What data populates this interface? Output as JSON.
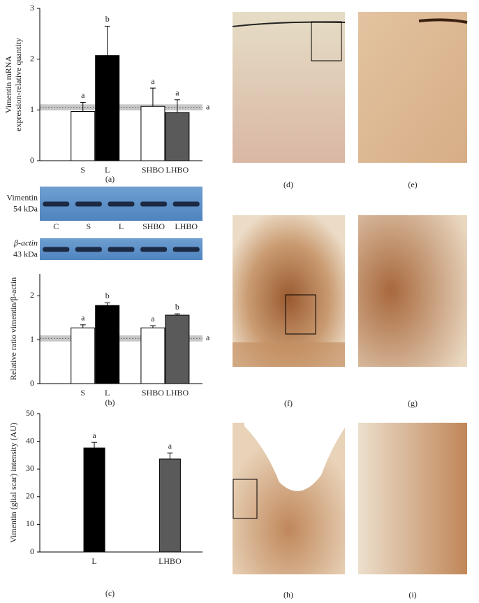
{
  "chart_data": [
    {
      "type": "bar",
      "ylabel": [
        "Vimentin mRNA",
        "expression-relative quantity"
      ],
      "caption": "(a)",
      "categories": [
        "S",
        "L",
        "SHBO",
        "LHBO"
      ],
      "values": [
        0.97,
        2.07,
        1.07,
        0.95
      ],
      "errors": [
        0.18,
        0.58,
        0.36,
        0.25
      ],
      "colors": [
        "#ffffff",
        "#000000",
        "#ffffff",
        "#5a5a5a"
      ],
      "letters": [
        "a",
        "b",
        "a",
        "a"
      ],
      "reference": 1.05,
      "reference_band": [
        0.99,
        1.11
      ],
      "reference_label": "a",
      "ylim": [
        0,
        3
      ],
      "yticks": [
        0,
        1,
        2,
        3
      ]
    },
    {
      "type": "bar",
      "ylabel": [
        "Relative ratio vimentin/β-actin"
      ],
      "caption": "(b)",
      "categories": [
        "S",
        "L",
        "SHBO",
        "LHBO"
      ],
      "values": [
        1.27,
        1.78,
        1.27,
        1.56
      ],
      "errors": [
        0.07,
        0.06,
        0.05,
        0.03
      ],
      "colors": [
        "#ffffff",
        "#000000",
        "#ffffff",
        "#5a5a5a"
      ],
      "letters": [
        "a",
        "b",
        "a",
        "b"
      ],
      "reference": 1.03,
      "reference_band": [
        0.96,
        1.1
      ],
      "reference_label": "a",
      "ylim": [
        0,
        2.5
      ],
      "yticks": [
        0,
        1,
        2
      ]
    },
    {
      "type": "bar",
      "ylabel": [
        "Vimentin (glial scar) intensity (AU)"
      ],
      "caption": "(c)",
      "categories": [
        "L",
        "LHBO"
      ],
      "values": [
        37.6,
        33.6
      ],
      "errors": [
        2.0,
        2.2
      ],
      "colors": [
        "#000000",
        "#5a5a5a"
      ],
      "letters": [
        "a",
        "a"
      ],
      "ylim": [
        0,
        50
      ],
      "yticks": [
        0,
        10,
        20,
        30,
        40,
        50
      ]
    }
  ],
  "blot": {
    "rows": [
      {
        "label": "Vimentin",
        "size": "54 kDa"
      },
      {
        "label": "β-actin",
        "size": "43 kDa"
      }
    ],
    "lanes": [
      "C",
      "S",
      "L",
      "SHBO",
      "LHBO"
    ]
  },
  "micrographs": [
    "(d)",
    "(e)",
    "(f)",
    "(g)",
    "(h)",
    "(i)"
  ]
}
